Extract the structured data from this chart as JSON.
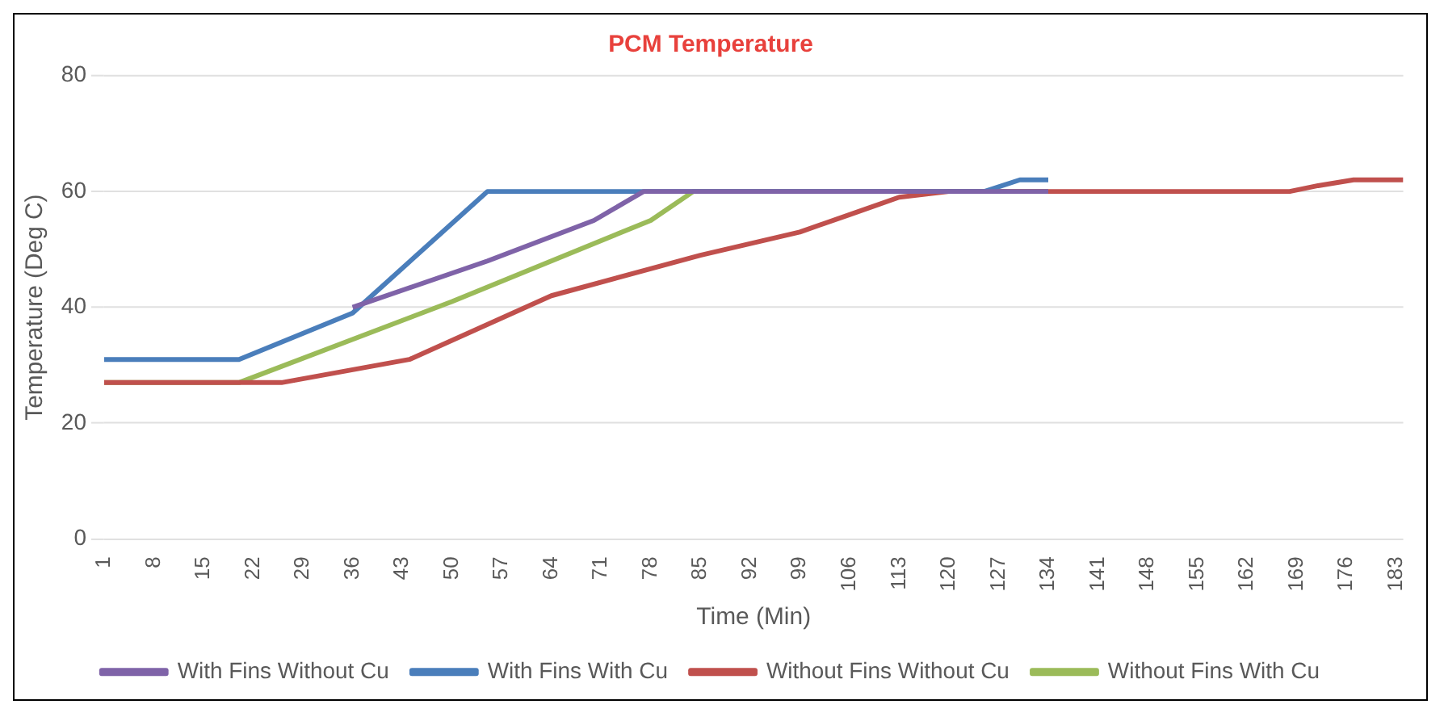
{
  "chart_data": {
    "type": "line",
    "title": "PCM Temperature",
    "xlabel": "Time (Min)",
    "ylabel": "Temperature (Deg C)",
    "xlim": [
      1,
      184
    ],
    "xticks": [
      1,
      8,
      15,
      22,
      29,
      36,
      43,
      50,
      57,
      64,
      71,
      78,
      85,
      92,
      99,
      106,
      113,
      120,
      127,
      134,
      141,
      148,
      155,
      162,
      169,
      176,
      183
    ],
    "ylim": [
      0,
      80
    ],
    "yticks": [
      0,
      20,
      40,
      60,
      80
    ],
    "grid": "y",
    "legend": "bottom",
    "marker": "none",
    "line_style": "solid",
    "series": [
      {
        "name": "With Fins Without Cu",
        "color": "#7f63a8",
        "x": [
          36,
          55,
          70,
          77,
          134
        ],
        "values": [
          40,
          48,
          55,
          60,
          60
        ]
      },
      {
        "name": "With Fins With Cu",
        "color": "#4a7ebb",
        "x": [
          1,
          20,
          36,
          55,
          125,
          130,
          134
        ],
        "values": [
          31,
          31,
          39,
          60,
          60,
          62,
          62
        ]
      },
      {
        "name": "Without Fins Without Cu",
        "color": "#c0504d",
        "x": [
          1,
          26,
          44,
          64,
          85,
          99,
          106,
          113,
          120,
          168,
          172,
          177,
          184
        ],
        "values": [
          27,
          27,
          31,
          42,
          49,
          53,
          56,
          59,
          60,
          60,
          61,
          62,
          62
        ]
      },
      {
        "name": "Without Fins With Cu",
        "color": "#9bbb59",
        "x": [
          1,
          20,
          50,
          78,
          84,
          134
        ],
        "values": [
          27,
          27,
          41,
          55,
          60,
          60
        ]
      }
    ]
  }
}
